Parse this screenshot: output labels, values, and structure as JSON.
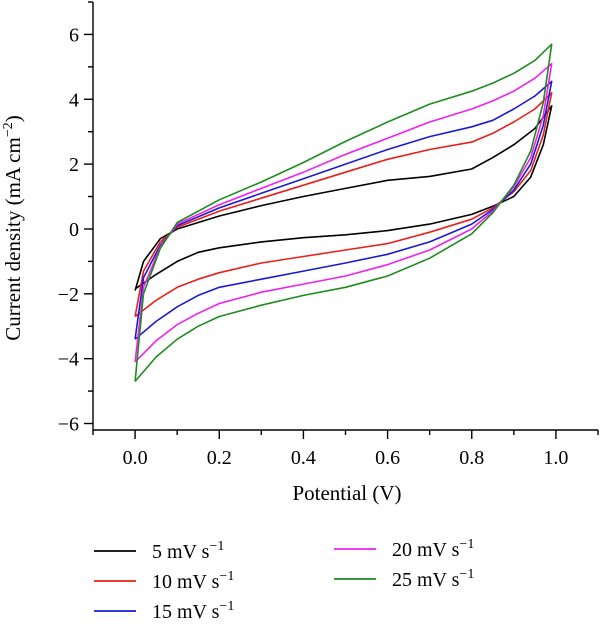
{
  "chart_data": {
    "type": "line",
    "xlabel": "Potential (V)",
    "ylabel": "Current density (mA cm",
    "ylabel_sup": "−2",
    "ylabel_end": ")",
    "xlim": [
      -0.1,
      1.1
    ],
    "ylim": [
      -6.2,
      7
    ],
    "x_ticks": [
      0.0,
      0.2,
      0.4,
      0.6,
      0.8,
      1.0
    ],
    "x_tick_labels": [
      "0.0",
      "0.2",
      "0.4",
      "0.6",
      "0.8",
      "1.0"
    ],
    "y_ticks": [
      -6,
      -4,
      -2,
      0,
      2,
      4,
      6
    ],
    "y_tick_labels": [
      "−6",
      "−4",
      "−2",
      "0",
      "2",
      "4",
      "6"
    ],
    "grid": false,
    "legend_position": "below",
    "series": [
      {
        "name": "5 mV s",
        "sup": "−1",
        "color": "#000000",
        "upper": [
          [
            0.0,
            -1.9
          ],
          [
            0.02,
            -1.0
          ],
          [
            0.06,
            -0.3
          ],
          [
            0.1,
            0.0
          ],
          [
            0.2,
            0.4
          ],
          [
            0.3,
            0.72
          ],
          [
            0.4,
            1.0
          ],
          [
            0.5,
            1.25
          ],
          [
            0.6,
            1.5
          ],
          [
            0.7,
            1.62
          ],
          [
            0.8,
            1.85
          ],
          [
            0.85,
            2.2
          ],
          [
            0.9,
            2.6
          ],
          [
            0.95,
            3.1
          ],
          [
            0.99,
            3.8
          ]
        ],
        "lower": [
          [
            0.99,
            3.8
          ],
          [
            0.97,
            2.6
          ],
          [
            0.94,
            1.6
          ],
          [
            0.9,
            1.0
          ],
          [
            0.85,
            0.7
          ],
          [
            0.8,
            0.45
          ],
          [
            0.7,
            0.15
          ],
          [
            0.6,
            -0.05
          ],
          [
            0.5,
            -0.18
          ],
          [
            0.4,
            -0.27
          ],
          [
            0.3,
            -0.4
          ],
          [
            0.2,
            -0.58
          ],
          [
            0.15,
            -0.72
          ],
          [
            0.1,
            -1.0
          ],
          [
            0.05,
            -1.4
          ],
          [
            0.0,
            -1.85
          ]
        ]
      },
      {
        "name": "10 mV s",
        "sup": "−1",
        "color": "#e8201a",
        "upper": [
          [
            0.0,
            -2.7
          ],
          [
            0.02,
            -1.3
          ],
          [
            0.06,
            -0.4
          ],
          [
            0.1,
            0.05
          ],
          [
            0.2,
            0.55
          ],
          [
            0.3,
            0.95
          ],
          [
            0.4,
            1.35
          ],
          [
            0.5,
            1.75
          ],
          [
            0.6,
            2.15
          ],
          [
            0.7,
            2.45
          ],
          [
            0.8,
            2.68
          ],
          [
            0.85,
            2.95
          ],
          [
            0.9,
            3.3
          ],
          [
            0.95,
            3.7
          ],
          [
            0.99,
            4.2
          ]
        ],
        "lower": [
          [
            0.99,
            4.2
          ],
          [
            0.97,
            2.9
          ],
          [
            0.94,
            1.8
          ],
          [
            0.9,
            1.15
          ],
          [
            0.85,
            0.65
          ],
          [
            0.8,
            0.3
          ],
          [
            0.7,
            -0.1
          ],
          [
            0.6,
            -0.45
          ],
          [
            0.5,
            -0.65
          ],
          [
            0.4,
            -0.85
          ],
          [
            0.3,
            -1.05
          ],
          [
            0.2,
            -1.35
          ],
          [
            0.15,
            -1.55
          ],
          [
            0.1,
            -1.8
          ],
          [
            0.05,
            -2.2
          ],
          [
            0.0,
            -2.7
          ]
        ]
      },
      {
        "name": "15 mV s",
        "sup": "−1",
        "color": "#1a1ad6",
        "upper": [
          [
            0.0,
            -3.4
          ],
          [
            0.02,
            -1.5
          ],
          [
            0.06,
            -0.5
          ],
          [
            0.1,
            0.1
          ],
          [
            0.2,
            0.65
          ],
          [
            0.3,
            1.1
          ],
          [
            0.4,
            1.55
          ],
          [
            0.5,
            2.0
          ],
          [
            0.6,
            2.45
          ],
          [
            0.7,
            2.85
          ],
          [
            0.8,
            3.15
          ],
          [
            0.85,
            3.35
          ],
          [
            0.9,
            3.7
          ],
          [
            0.95,
            4.1
          ],
          [
            0.99,
            4.55
          ]
        ],
        "lower": [
          [
            0.99,
            4.55
          ],
          [
            0.97,
            3.2
          ],
          [
            0.94,
            2.0
          ],
          [
            0.9,
            1.2
          ],
          [
            0.85,
            0.6
          ],
          [
            0.8,
            0.15
          ],
          [
            0.7,
            -0.4
          ],
          [
            0.6,
            -0.78
          ],
          [
            0.5,
            -1.05
          ],
          [
            0.4,
            -1.3
          ],
          [
            0.3,
            -1.55
          ],
          [
            0.2,
            -1.8
          ],
          [
            0.15,
            -2.05
          ],
          [
            0.1,
            -2.4
          ],
          [
            0.05,
            -2.85
          ],
          [
            0.0,
            -3.4
          ]
        ]
      },
      {
        "name": "20 mV s",
        "sup": "−1",
        "color": "#f020f0",
        "upper": [
          [
            0.0,
            -4.1
          ],
          [
            0.02,
            -1.8
          ],
          [
            0.06,
            -0.55
          ],
          [
            0.1,
            0.15
          ],
          [
            0.2,
            0.75
          ],
          [
            0.3,
            1.25
          ],
          [
            0.4,
            1.75
          ],
          [
            0.5,
            2.3
          ],
          [
            0.6,
            2.8
          ],
          [
            0.7,
            3.3
          ],
          [
            0.8,
            3.7
          ],
          [
            0.85,
            3.95
          ],
          [
            0.9,
            4.25
          ],
          [
            0.95,
            4.65
          ],
          [
            0.99,
            5.1
          ]
        ],
        "lower": [
          [
            0.99,
            5.1
          ],
          [
            0.97,
            3.5
          ],
          [
            0.94,
            2.2
          ],
          [
            0.9,
            1.3
          ],
          [
            0.85,
            0.55
          ],
          [
            0.8,
            0.0
          ],
          [
            0.7,
            -0.65
          ],
          [
            0.6,
            -1.1
          ],
          [
            0.5,
            -1.45
          ],
          [
            0.4,
            -1.7
          ],
          [
            0.3,
            -1.95
          ],
          [
            0.2,
            -2.3
          ],
          [
            0.15,
            -2.6
          ],
          [
            0.1,
            -2.95
          ],
          [
            0.05,
            -3.45
          ],
          [
            0.0,
            -4.1
          ]
        ]
      },
      {
        "name": "25 mV s",
        "sup": "−1",
        "color": "#1e8c1e",
        "upper": [
          [
            0.0,
            -4.7
          ],
          [
            0.02,
            -2.0
          ],
          [
            0.06,
            -0.6
          ],
          [
            0.1,
            0.2
          ],
          [
            0.2,
            0.9
          ],
          [
            0.3,
            1.45
          ],
          [
            0.4,
            2.05
          ],
          [
            0.5,
            2.7
          ],
          [
            0.6,
            3.3
          ],
          [
            0.7,
            3.85
          ],
          [
            0.8,
            4.25
          ],
          [
            0.85,
            4.5
          ],
          [
            0.9,
            4.8
          ],
          [
            0.95,
            5.2
          ],
          [
            0.99,
            5.7
          ]
        ],
        "lower": [
          [
            0.99,
            5.7
          ],
          [
            0.97,
            3.9
          ],
          [
            0.94,
            2.4
          ],
          [
            0.9,
            1.35
          ],
          [
            0.85,
            0.5
          ],
          [
            0.8,
            -0.15
          ],
          [
            0.7,
            -0.9
          ],
          [
            0.6,
            -1.45
          ],
          [
            0.5,
            -1.8
          ],
          [
            0.4,
            -2.05
          ],
          [
            0.3,
            -2.35
          ],
          [
            0.2,
            -2.7
          ],
          [
            0.15,
            -3.0
          ],
          [
            0.1,
            -3.4
          ],
          [
            0.05,
            -3.95
          ],
          [
            0.0,
            -4.7
          ]
        ]
      }
    ]
  }
}
